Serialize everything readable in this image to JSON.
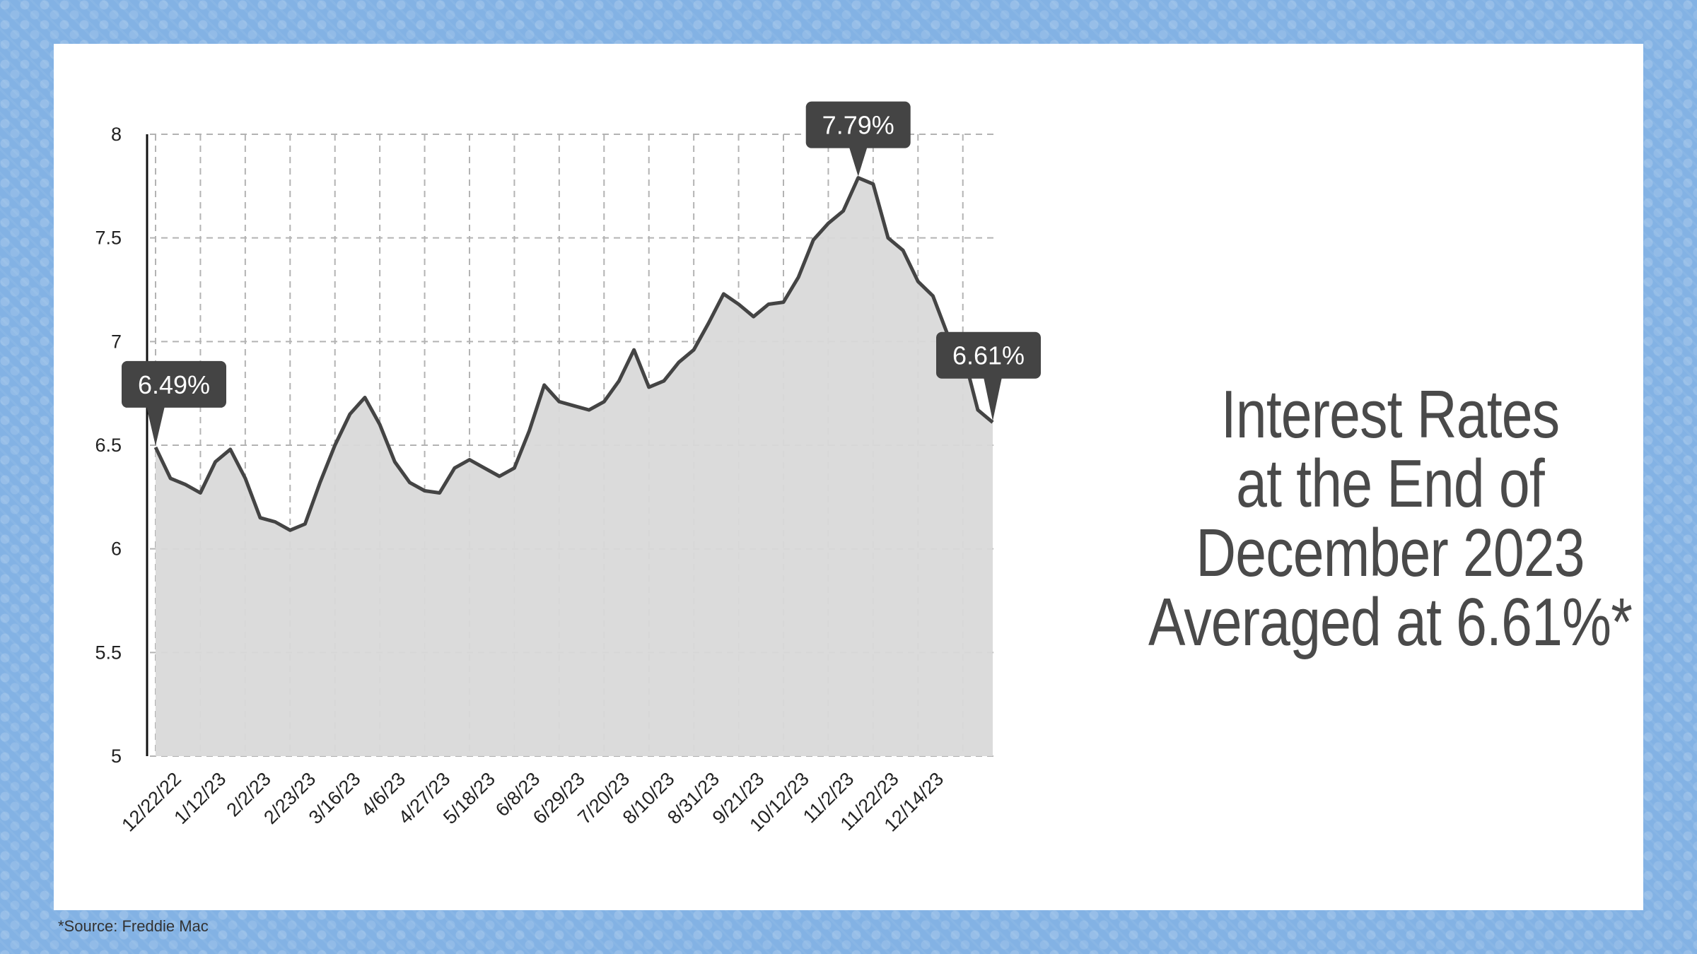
{
  "headline": {
    "line1": "Interest Rates",
    "line2": "at the End of",
    "line3": "December 2023",
    "line4": "Averaged at 6.61%*"
  },
  "source_note": "*Source: Freddie Mac",
  "colors": {
    "background": "#83b2e4",
    "card": "#ffffff",
    "line": "#444444",
    "fill": "#d9d9d9",
    "grid": "#b3b3b3",
    "bubble": "#444444",
    "headline": "#4a4a4a"
  },
  "chart_data": {
    "type": "area",
    "title": "",
    "xlabel": "",
    "ylabel": "",
    "ylim": [
      5,
      8
    ],
    "yticks": [
      "5",
      "5.5",
      "6",
      "6.5",
      "7",
      "7.5",
      "8"
    ],
    "xtick_labels": [
      "12/22/22",
      "1/12/23",
      "2/2/23",
      "2/23/23",
      "3/16/23",
      "4/6/23",
      "4/27/23",
      "5/18/23",
      "6/8/23",
      "6/29/23",
      "7/20/23",
      "8/10/23",
      "8/31/23",
      "9/21/23",
      "10/12/23",
      "11/2/23",
      "11/22/23",
      "12/14/23"
    ],
    "grid": true,
    "series": [
      {
        "values": [
          6.49,
          6.34,
          6.31,
          6.27,
          6.42,
          6.48,
          6.34,
          6.15,
          6.13,
          6.09,
          6.12,
          6.32,
          6.5,
          6.65,
          6.73,
          6.6,
          6.42,
          6.32,
          6.28,
          6.27,
          6.39,
          6.43,
          6.39,
          6.35,
          6.39,
          6.57,
          6.79,
          6.71,
          6.69,
          6.67,
          6.71,
          6.81,
          6.96,
          6.78,
          6.81,
          6.9,
          6.96,
          7.09,
          7.23,
          7.18,
          7.12,
          7.18,
          7.19,
          7.31,
          7.49,
          7.57,
          7.63,
          7.79,
          7.76,
          7.5,
          7.44,
          7.29,
          7.22,
          7.03,
          6.95,
          6.67,
          6.61
        ]
      }
    ],
    "annotations": [
      {
        "label": "6.49%",
        "point_index": 0
      },
      {
        "label": "7.79%",
        "point_index": 47
      },
      {
        "label": "6.61%",
        "point_index": 56
      }
    ]
  }
}
